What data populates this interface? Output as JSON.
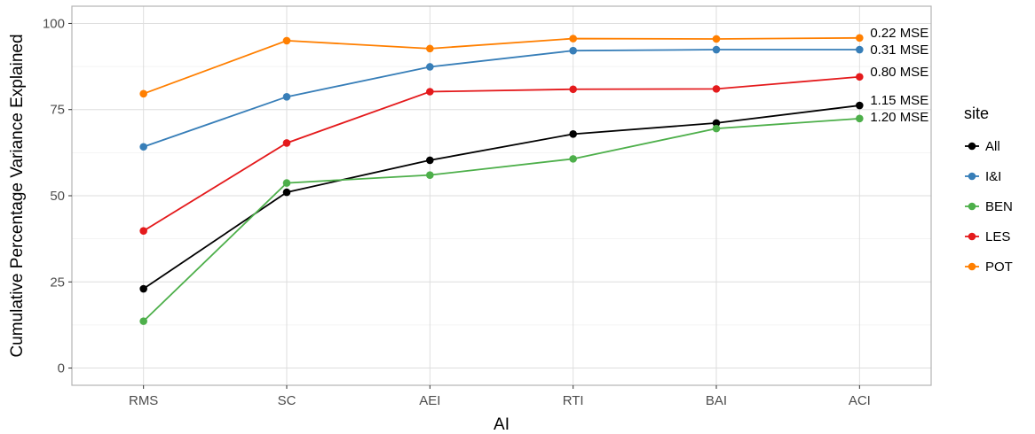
{
  "chart_data": {
    "type": "line",
    "xlabel": "AI",
    "ylabel": "Cumulative Percentage Variance Explained",
    "categories": [
      "RMS",
      "SC",
      "AEI",
      "RTI",
      "BAI",
      "ACI"
    ],
    "ylim": [
      -5,
      105
    ],
    "yticks": [
      0,
      25,
      50,
      75,
      100
    ],
    "grid": true,
    "legend": {
      "title": "site",
      "position": "right",
      "items": [
        "All",
        "I&I",
        "BEN",
        "LES",
        "POT"
      ]
    },
    "series": [
      {
        "name": "All",
        "color": "#000000",
        "values": [
          23.0,
          51.0,
          60.3,
          67.9,
          71.1,
          76.2
        ]
      },
      {
        "name": "I&I",
        "color": "#377EB8",
        "values": [
          64.2,
          78.7,
          87.4,
          92.1,
          92.4,
          92.4
        ]
      },
      {
        "name": "BEN",
        "color": "#4DAF4A",
        "values": [
          13.6,
          53.7,
          56.0,
          60.7,
          69.5,
          72.4
        ]
      },
      {
        "name": "LES",
        "color": "#E41A1C",
        "values": [
          39.8,
          65.3,
          80.2,
          80.9,
          81.0,
          84.5
        ]
      },
      {
        "name": "POT",
        "color": "#FF7F00",
        "values": [
          79.6,
          95.0,
          92.7,
          95.6,
          95.5,
          95.8
        ]
      }
    ],
    "annotations": [
      {
        "series": "POT",
        "text": "0.22 MSE"
      },
      {
        "series": "I&I",
        "text": "0.31 MSE"
      },
      {
        "series": "LES",
        "text": "0.80 MSE"
      },
      {
        "series": "All",
        "text": "1.15 MSE"
      },
      {
        "series": "BEN",
        "text": "1.20 MSE"
      }
    ]
  }
}
